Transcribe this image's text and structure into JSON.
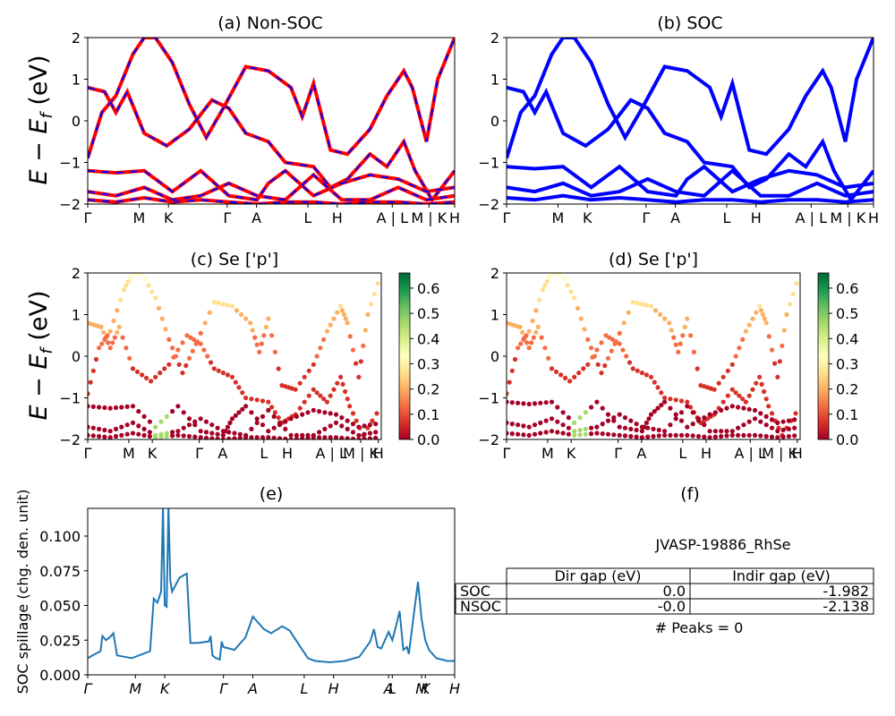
{
  "panels": {
    "a": {
      "title": "(a) Non-SOC"
    },
    "b": {
      "title": "(b) SOC"
    },
    "c": {
      "title": "(c)  Se ['p']"
    },
    "d": {
      "title": "(d) Se ['p']"
    },
    "e": {
      "title": "(e)"
    },
    "f": {
      "title": "(f)"
    }
  },
  "ylabel_band": "E − E_f (eV)",
  "ylabel_spill": "SOC spillage (chg. den. unit)",
  "band_xticks": [
    "Γ",
    "M",
    "K",
    "Γ",
    "A",
    "L",
    "H",
    "A | L",
    "M | K",
    "H"
  ],
  "spill_xticks": [
    "Γ",
    "M",
    "K",
    "Γ",
    "A",
    "L",
    "H",
    "A",
    "L",
    "M",
    "K",
    "H"
  ],
  "band_yticks": [
    "2",
    "1",
    "0",
    "−1",
    "−2"
  ],
  "colorbar_ticks": [
    "0.6",
    "0.5",
    "0.4",
    "0.3",
    "0.2",
    "0.1",
    "0.0"
  ],
  "table": {
    "name": "JVASP-19886_RhSe",
    "col_headers": [
      "Dir gap (eV)",
      "Indir gap (eV)"
    ],
    "rows": [
      {
        "label": "SOC",
        "dir": "0.0",
        "indir": "-1.982"
      },
      {
        "label": "NSOC",
        "dir": "-0.0",
        "indir": "-2.138"
      }
    ],
    "peaks": "# Peaks = 0"
  },
  "colors": {
    "nonsoc_line": "#ff0000",
    "nonsoc_dash": "#0000ff",
    "soc_line": "#0000ff",
    "spill_line": "#1f77b4"
  },
  "chart_data": [
    {
      "type": "line",
      "panel": "a",
      "title": "(a) Non-SOC",
      "ylabel": "E − E_f (eV)",
      "ylim": [
        -2,
        2
      ],
      "series": [
        {
          "values": [
            [
              0,
              -0.9
            ],
            [
              0.5,
              0.2
            ],
            [
              1,
              0.6
            ],
            [
              1.6,
              1.6
            ],
            [
              2,
              2
            ],
            [
              2.4,
              2
            ],
            [
              3,
              1.4
            ],
            [
              3.6,
              0.4
            ],
            [
              4.2,
              -0.4
            ],
            [
              4.8,
              0.3
            ],
            [
              5.6,
              1.3
            ],
            [
              6.4,
              1.2
            ],
            [
              7.2,
              0.8
            ],
            [
              7.6,
              0.1
            ],
            [
              8,
              0.9
            ],
            [
              8.6,
              -0.7
            ],
            [
              9.2,
              -0.8
            ],
            [
              10,
              -0.2
            ],
            [
              10.6,
              0.6
            ],
            [
              11.2,
              1.2
            ],
            [
              11.5,
              0.8
            ],
            [
              12,
              -0.5
            ],
            [
              12.4,
              1.0
            ],
            [
              13,
              2
            ]
          ]
        },
        {
          "values": [
            [
              0,
              0.8
            ],
            [
              0.6,
              0.7
            ],
            [
              1,
              0.2
            ],
            [
              1.4,
              0.7
            ],
            [
              2,
              -0.3
            ],
            [
              2.8,
              -0.6
            ],
            [
              3.6,
              -0.2
            ],
            [
              4.4,
              0.5
            ],
            [
              5,
              0.3
            ],
            [
              5.6,
              -0.3
            ],
            [
              6.4,
              -0.5
            ],
            [
              7,
              -1.0
            ],
            [
              8,
              -1.1
            ],
            [
              8.6,
              -1.6
            ],
            [
              9.2,
              -1.4
            ],
            [
              10,
              -0.8
            ],
            [
              10.6,
              -1.1
            ],
            [
              11.2,
              -0.5
            ],
            [
              11.6,
              -1.2
            ],
            [
              12.2,
              -1.9
            ],
            [
              13,
              -1.2
            ]
          ]
        },
        {
          "values": [
            [
              0,
              -1.2
            ],
            [
              1,
              -1.25
            ],
            [
              2,
              -1.2
            ],
            [
              3,
              -1.7
            ],
            [
              4,
              -1.2
            ],
            [
              5,
              -1.8
            ],
            [
              6,
              -1.9
            ],
            [
              6.4,
              -1.5
            ],
            [
              7,
              -1.2
            ],
            [
              8,
              -1.8
            ],
            [
              9,
              -1.5
            ],
            [
              10,
              -1.3
            ],
            [
              11,
              -1.4
            ],
            [
              12,
              -1.7
            ],
            [
              13,
              -1.6
            ]
          ]
        },
        {
          "values": [
            [
              0,
              -1.7
            ],
            [
              1,
              -1.8
            ],
            [
              2,
              -1.6
            ],
            [
              3,
              -1.9
            ],
            [
              4,
              -1.8
            ],
            [
              5,
              -1.5
            ],
            [
              6,
              -1.8
            ],
            [
              7,
              -1.9
            ],
            [
              8,
              -1.3
            ],
            [
              9,
              -1.9
            ],
            [
              10,
              -1.9
            ],
            [
              11,
              -1.6
            ],
            [
              12,
              -1.9
            ],
            [
              13,
              -1.8
            ]
          ]
        },
        {
          "values": [
            [
              0,
              -1.9
            ],
            [
              1,
              -1.95
            ],
            [
              2,
              -1.85
            ],
            [
              3,
              -1.95
            ],
            [
              4,
              -1.9
            ],
            [
              5,
              -1.95
            ],
            [
              6,
              -2.0
            ],
            [
              7,
              -1.95
            ],
            [
              8,
              -1.95
            ],
            [
              9,
              -2.0
            ],
            [
              10,
              -1.95
            ],
            [
              11,
              -1.95
            ],
            [
              12,
              -2.0
            ],
            [
              13,
              -1.95
            ]
          ]
        }
      ]
    },
    {
      "type": "line",
      "panel": "b",
      "title": "(b) SOC",
      "ylim": [
        -2,
        2
      ],
      "series": [
        {
          "values": [
            [
              0,
              -0.9
            ],
            [
              0.5,
              0.2
            ],
            [
              1,
              0.6
            ],
            [
              1.6,
              1.6
            ],
            [
              2,
              2
            ],
            [
              2.4,
              2
            ],
            [
              3,
              1.4
            ],
            [
              3.6,
              0.4
            ],
            [
              4.2,
              -0.4
            ],
            [
              4.8,
              0.3
            ],
            [
              5.6,
              1.3
            ],
            [
              6.4,
              1.2
            ],
            [
              7.2,
              0.8
            ],
            [
              7.6,
              0.1
            ],
            [
              8,
              0.9
            ],
            [
              8.6,
              -0.7
            ],
            [
              9.2,
              -0.8
            ],
            [
              10,
              -0.2
            ],
            [
              10.6,
              0.6
            ],
            [
              11.2,
              1.2
            ],
            [
              11.5,
              0.8
            ],
            [
              12,
              -0.5
            ],
            [
              12.4,
              1.0
            ],
            [
              13,
              2
            ]
          ]
        },
        {
          "values": [
            [
              0,
              0.8
            ],
            [
              0.6,
              0.7
            ],
            [
              1,
              0.2
            ],
            [
              1.4,
              0.7
            ],
            [
              2,
              -0.3
            ],
            [
              2.8,
              -0.6
            ],
            [
              3.6,
              -0.2
            ],
            [
              4.4,
              0.5
            ],
            [
              5,
              0.3
            ],
            [
              5.6,
              -0.3
            ],
            [
              6.4,
              -0.5
            ],
            [
              7,
              -1.0
            ],
            [
              8,
              -1.1
            ],
            [
              8.6,
              -1.6
            ],
            [
              9.2,
              -1.4
            ],
            [
              10,
              -0.8
            ],
            [
              10.6,
              -1.1
            ],
            [
              11.2,
              -0.5
            ],
            [
              11.6,
              -1.2
            ],
            [
              12.2,
              -1.9
            ],
            [
              13,
              -1.2
            ]
          ]
        },
        {
          "values": [
            [
              0,
              -1.1
            ],
            [
              1,
              -1.15
            ],
            [
              2,
              -1.1
            ],
            [
              3,
              -1.6
            ],
            [
              4,
              -1.1
            ],
            [
              5,
              -1.7
            ],
            [
              6,
              -1.8
            ],
            [
              6.4,
              -1.4
            ],
            [
              7,
              -1.1
            ],
            [
              8,
              -1.7
            ],
            [
              9,
              -1.4
            ],
            [
              10,
              -1.2
            ],
            [
              11,
              -1.3
            ],
            [
              12,
              -1.6
            ],
            [
              13,
              -1.5
            ]
          ]
        },
        {
          "values": [
            [
              0,
              -1.6
            ],
            [
              1,
              -1.7
            ],
            [
              2,
              -1.5
            ],
            [
              3,
              -1.8
            ],
            [
              4,
              -1.7
            ],
            [
              5,
              -1.4
            ],
            [
              6,
              -1.7
            ],
            [
              7,
              -1.8
            ],
            [
              8,
              -1.2
            ],
            [
              9,
              -1.8
            ],
            [
              10,
              -1.8
            ],
            [
              11,
              -1.5
            ],
            [
              12,
              -1.8
            ],
            [
              13,
              -1.7
            ]
          ]
        },
        {
          "values": [
            [
              0,
              -1.85
            ],
            [
              1,
              -1.9
            ],
            [
              2,
              -1.8
            ],
            [
              3,
              -1.9
            ],
            [
              4,
              -1.85
            ],
            [
              5,
              -1.9
            ],
            [
              6,
              -1.95
            ],
            [
              7,
              -1.9
            ],
            [
              8,
              -1.9
            ],
            [
              9,
              -1.95
            ],
            [
              10,
              -1.9
            ],
            [
              11,
              -1.9
            ],
            [
              12,
              -1.95
            ],
            [
              13,
              -1.9
            ]
          ]
        }
      ]
    },
    {
      "type": "scatter",
      "panel": "c",
      "title": "(c)  Se ['p']",
      "ylabel": "E − E_f (eV)",
      "ylim": [
        -2,
        2
      ],
      "colorbar": {
        "min": 0.0,
        "max": 0.65,
        "cmap": "RdYlGn"
      }
    },
    {
      "type": "scatter",
      "panel": "d",
      "title": "(d) Se ['p']",
      "ylim": [
        -2,
        2
      ],
      "colorbar": {
        "min": 0.0,
        "max": 0.65,
        "cmap": "RdYlGn"
      }
    },
    {
      "type": "line",
      "panel": "e",
      "title": "(e)",
      "ylabel": "SOC spillage (chg. den. unit)",
      "ylim": [
        0,
        0.12
      ],
      "yticks": [
        "0.000",
        "0.025",
        "0.050",
        "0.075",
        "0.100"
      ],
      "x": [
        0,
        0.02,
        0.035,
        0.04,
        0.05,
        0.06,
        0.07,
        0.08,
        0.12,
        0.17,
        0.18,
        0.19,
        0.2,
        0.205,
        0.21,
        0.215,
        0.22,
        0.225,
        0.23,
        0.24,
        0.25,
        0.27,
        0.28,
        0.3,
        0.33,
        0.335,
        0.34,
        0.345,
        0.35,
        0.36,
        0.365,
        0.37,
        0.4,
        0.43,
        0.45,
        0.48,
        0.5,
        0.53,
        0.55,
        0.6,
        0.6,
        0.62,
        0.66,
        0.7,
        0.74,
        0.77,
        0.78,
        0.79,
        0.8,
        0.82,
        0.83,
        0.84,
        0.85,
        0.86,
        0.87,
        0.875,
        0.9,
        0.91,
        0.92,
        0.93,
        0.95,
        0.98,
        1.0
      ],
      "values": [
        0.012,
        0.015,
        0.017,
        0.028,
        0.025,
        0.027,
        0.03,
        0.014,
        0.012,
        0.017,
        0.055,
        0.052,
        0.06,
        0.12,
        0.05,
        0.049,
        0.121,
        0.068,
        0.06,
        0.065,
        0.07,
        0.073,
        0.023,
        0.023,
        0.024,
        0.028,
        0.014,
        0.013,
        0.012,
        0.011,
        0.024,
        0.02,
        0.018,
        0.027,
        0.042,
        0.033,
        0.03,
        0.035,
        0.032,
        0.012,
        0.012,
        0.01,
        0.009,
        0.01,
        0.013,
        0.024,
        0.033,
        0.02,
        0.019,
        0.031,
        0.025,
        0.035,
        0.046,
        0.018,
        0.02,
        0.015,
        0.067,
        0.04,
        0.025,
        0.018,
        0.012,
        0.01,
        0.01
      ]
    }
  ]
}
